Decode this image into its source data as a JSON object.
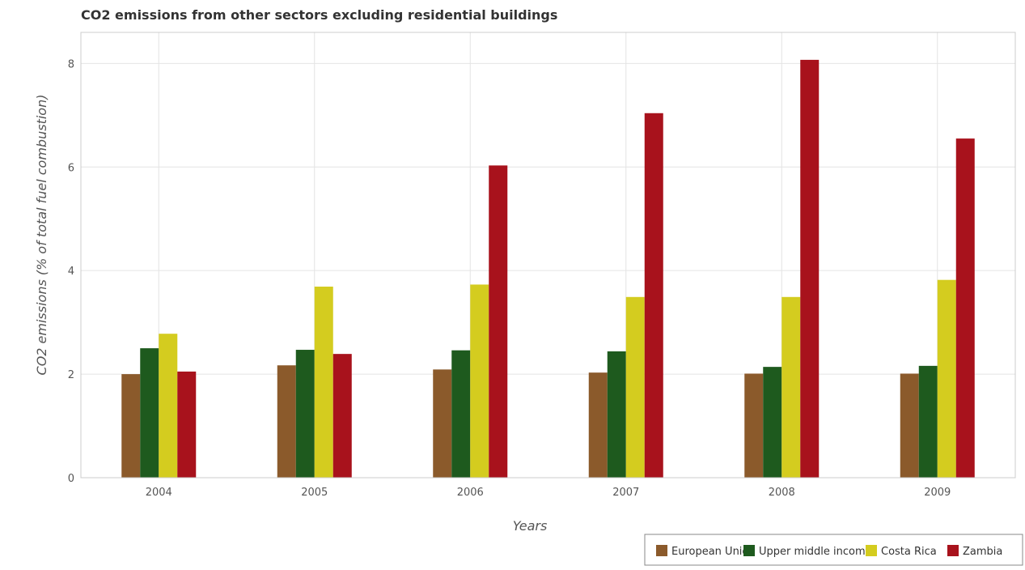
{
  "chart_data": {
    "type": "bar",
    "title": "CO2 emissions from other sectors excluding residential buildings",
    "xlabel": "Years",
    "ylabel": "CO2 emissions (% of total fuel combustion)",
    "categories": [
      "2004",
      "2005",
      "2006",
      "2007",
      "2008",
      "2009"
    ],
    "ylim": [
      0,
      8.6
    ],
    "yticks": [
      0,
      2,
      4,
      6,
      8
    ],
    "ytick_labels": [
      "0",
      "2",
      "4",
      "6",
      "8"
    ],
    "grid": true,
    "legend_position": "bottom-right",
    "series": [
      {
        "name": "European Union",
        "color": "#8B5A2B",
        "values": [
          2.0,
          2.17,
          2.09,
          2.03,
          2.01,
          2.01
        ]
      },
      {
        "name": "Upper middle income",
        "color": "#1E5A1E",
        "values": [
          2.5,
          2.47,
          2.46,
          2.44,
          2.14,
          2.16
        ]
      },
      {
        "name": "Costa Rica",
        "color": "#D4CC1F",
        "values": [
          2.78,
          3.69,
          3.73,
          3.49,
          3.49,
          3.82
        ]
      },
      {
        "name": "Zambia",
        "color": "#A8121C",
        "values": [
          2.05,
          2.39,
          6.03,
          7.04,
          8.07,
          6.55
        ]
      }
    ]
  }
}
